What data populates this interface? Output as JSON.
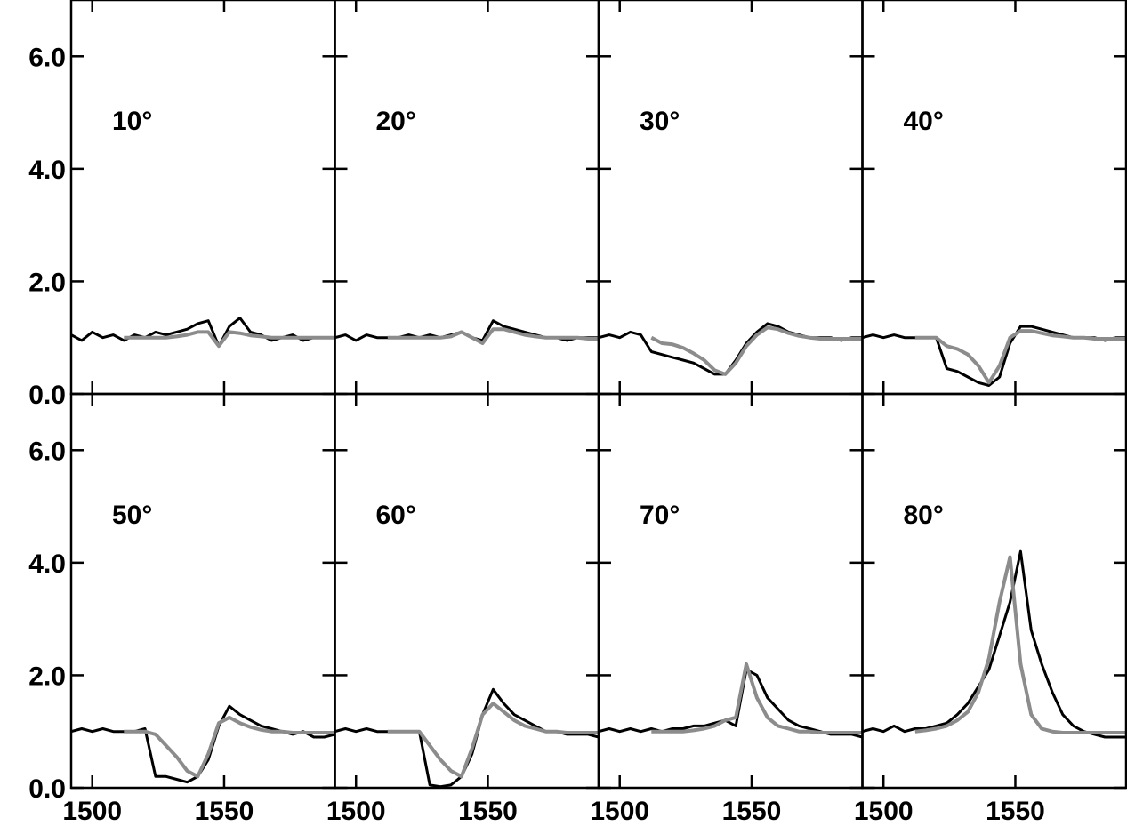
{
  "chart_data": [
    {
      "type": "line",
      "label": "10°",
      "xlim": [
        1492,
        1592
      ],
      "ylim": [
        0,
        7
      ],
      "xticks": [
        1500,
        1550
      ],
      "yticks": [
        {
          "value": 0,
          "label": "0.0"
        },
        {
          "value": 2,
          "label": "2.0"
        },
        {
          "value": 4,
          "label": "4.0"
        },
        {
          "value": 6,
          "label": "6.0"
        }
      ],
      "x": [
        1492,
        1496,
        1500,
        1504,
        1508,
        1512,
        1516,
        1520,
        1524,
        1528,
        1532,
        1536,
        1540,
        1544,
        1548,
        1552,
        1556,
        1560,
        1564,
        1568,
        1572,
        1576,
        1580,
        1584,
        1588,
        1592
      ],
      "series": [
        {
          "color": "#000000",
          "values": [
            1.05,
            0.95,
            1.1,
            1.0,
            1.05,
            0.95,
            1.05,
            1.0,
            1.1,
            1.05,
            1.1,
            1.15,
            1.25,
            1.3,
            0.85,
            1.2,
            1.35,
            1.1,
            1.05,
            0.95,
            1.0,
            1.05,
            0.95,
            1.0,
            1.0,
            1.0
          ]
        },
        {
          "color": "#8c8c8c",
          "values": [
            null,
            null,
            null,
            null,
            null,
            1.0,
            1.0,
            1.0,
            1.0,
            1.0,
            1.02,
            1.05,
            1.1,
            1.1,
            0.85,
            1.1,
            1.08,
            1.04,
            1.02,
            1.0,
            1.0,
            1.0,
            1.0,
            1.0,
            1.0,
            1.0
          ]
        }
      ]
    },
    {
      "type": "line",
      "label": "20°",
      "xlim": [
        1492,
        1592
      ],
      "ylim": [
        0,
        7
      ],
      "xticks": [
        1500,
        1550
      ],
      "yticks": [
        0,
        2,
        4,
        6
      ],
      "x": [
        1492,
        1496,
        1500,
        1504,
        1508,
        1512,
        1516,
        1520,
        1524,
        1528,
        1532,
        1536,
        1540,
        1544,
        1548,
        1552,
        1556,
        1560,
        1564,
        1568,
        1572,
        1576,
        1580,
        1584,
        1588,
        1592
      ],
      "series": [
        {
          "color": "#000000",
          "values": [
            1.0,
            1.05,
            0.95,
            1.05,
            1.0,
            1.0,
            1.0,
            1.05,
            1.0,
            1.05,
            1.0,
            1.05,
            1.1,
            1.0,
            0.95,
            1.3,
            1.2,
            1.15,
            1.1,
            1.05,
            1.0,
            1.0,
            0.95,
            1.0,
            1.0,
            1.0
          ]
        },
        {
          "color": "#8c8c8c",
          "values": [
            null,
            null,
            null,
            null,
            null,
            1.0,
            1.0,
            1.0,
            1.0,
            1.0,
            1.0,
            1.02,
            1.1,
            1.0,
            0.9,
            1.15,
            1.15,
            1.1,
            1.05,
            1.02,
            1.0,
            1.0,
            1.0,
            1.0,
            0.98,
            0.98
          ]
        }
      ]
    },
    {
      "type": "line",
      "label": "30°",
      "xlim": [
        1492,
        1592
      ],
      "ylim": [
        0,
        7
      ],
      "xticks": [
        1500,
        1550
      ],
      "yticks": [
        0,
        2,
        4,
        6
      ],
      "x": [
        1492,
        1496,
        1500,
        1504,
        1508,
        1512,
        1516,
        1520,
        1524,
        1528,
        1532,
        1536,
        1540,
        1544,
        1548,
        1552,
        1556,
        1560,
        1564,
        1568,
        1572,
        1576,
        1580,
        1584,
        1588,
        1592
      ],
      "series": [
        {
          "color": "#000000",
          "values": [
            1.0,
            1.05,
            1.0,
            1.1,
            1.05,
            0.75,
            0.7,
            0.65,
            0.6,
            0.55,
            0.45,
            0.35,
            0.35,
            0.6,
            0.9,
            1.1,
            1.25,
            1.2,
            1.1,
            1.05,
            1.0,
            1.0,
            1.0,
            0.95,
            1.0,
            1.0
          ]
        },
        {
          "color": "#8c8c8c",
          "values": [
            null,
            null,
            null,
            null,
            null,
            1.0,
            0.9,
            0.88,
            0.82,
            0.72,
            0.6,
            0.42,
            0.35,
            0.55,
            0.85,
            1.05,
            1.18,
            1.15,
            1.08,
            1.03,
            1.0,
            0.98,
            0.98,
            0.98,
            0.98,
            0.98
          ]
        }
      ]
    },
    {
      "type": "line",
      "label": "40°",
      "xlim": [
        1492,
        1592
      ],
      "ylim": [
        0,
        7
      ],
      "xticks": [
        1500,
        1550
      ],
      "yticks": [
        0,
        2,
        4,
        6
      ],
      "x": [
        1492,
        1496,
        1500,
        1504,
        1508,
        1512,
        1516,
        1520,
        1524,
        1528,
        1532,
        1536,
        1540,
        1544,
        1548,
        1552,
        1556,
        1560,
        1564,
        1568,
        1572,
        1576,
        1580,
        1584,
        1588,
        1592
      ],
      "series": [
        {
          "color": "#000000",
          "values": [
            1.0,
            1.05,
            1.0,
            1.05,
            1.0,
            1.0,
            1.0,
            1.0,
            0.45,
            0.4,
            0.3,
            0.2,
            0.15,
            0.3,
            0.9,
            1.2,
            1.2,
            1.15,
            1.1,
            1.05,
            1.0,
            1.0,
            1.0,
            0.95,
            1.0,
            1.0
          ]
        },
        {
          "color": "#8c8c8c",
          "values": [
            null,
            null,
            null,
            null,
            null,
            1.0,
            1.0,
            1.0,
            0.85,
            0.8,
            0.7,
            0.5,
            0.2,
            0.5,
            1.0,
            1.12,
            1.12,
            1.08,
            1.04,
            1.02,
            1.0,
            1.0,
            0.98,
            0.98,
            0.98,
            0.98
          ]
        }
      ]
    },
    {
      "type": "line",
      "label": "50°",
      "xlim": [
        1492,
        1592
      ],
      "ylim": [
        0,
        7
      ],
      "xticks": [
        1500,
        1550
      ],
      "yticks": [
        {
          "value": 0,
          "label": "0.0"
        },
        {
          "value": 2,
          "label": "2.0"
        },
        {
          "value": 4,
          "label": "4.0"
        },
        {
          "value": 6,
          "label": "6.0"
        }
      ],
      "x": [
        1492,
        1496,
        1500,
        1504,
        1508,
        1512,
        1516,
        1520,
        1524,
        1528,
        1532,
        1536,
        1540,
        1544,
        1548,
        1552,
        1556,
        1560,
        1564,
        1568,
        1572,
        1576,
        1580,
        1584,
        1588,
        1592
      ],
      "series": [
        {
          "color": "#000000",
          "values": [
            1.0,
            1.05,
            1.0,
            1.05,
            1.0,
            1.0,
            1.0,
            1.05,
            0.2,
            0.2,
            0.15,
            0.1,
            0.2,
            0.5,
            1.1,
            1.45,
            1.3,
            1.2,
            1.1,
            1.05,
            1.0,
            0.95,
            1.0,
            0.9,
            0.9,
            0.95
          ]
        },
        {
          "color": "#8c8c8c",
          "values": [
            null,
            null,
            null,
            null,
            null,
            1.0,
            1.0,
            1.0,
            0.95,
            0.75,
            0.55,
            0.3,
            0.2,
            0.6,
            1.15,
            1.25,
            1.15,
            1.08,
            1.03,
            1.0,
            1.0,
            0.98,
            0.98,
            0.98,
            0.98,
            0.98
          ]
        }
      ]
    },
    {
      "type": "line",
      "label": "60°",
      "xlim": [
        1492,
        1592
      ],
      "ylim": [
        0,
        7
      ],
      "xticks": [
        1500,
        1550
      ],
      "yticks": [
        0,
        2,
        4,
        6
      ],
      "x": [
        1492,
        1496,
        1500,
        1504,
        1508,
        1512,
        1516,
        1520,
        1524,
        1528,
        1532,
        1536,
        1540,
        1544,
        1548,
        1552,
        1556,
        1560,
        1564,
        1568,
        1572,
        1576,
        1580,
        1584,
        1588,
        1592
      ],
      "series": [
        {
          "color": "#000000",
          "values": [
            1.0,
            1.05,
            1.0,
            1.05,
            1.0,
            1.0,
            1.0,
            1.0,
            1.0,
            0.05,
            0.02,
            0.05,
            0.2,
            0.6,
            1.3,
            1.75,
            1.5,
            1.3,
            1.2,
            1.1,
            1.0,
            1.0,
            0.95,
            0.95,
            0.95,
            0.9
          ]
        },
        {
          "color": "#8c8c8c",
          "values": [
            null,
            null,
            null,
            null,
            null,
            1.0,
            1.0,
            1.0,
            1.0,
            0.75,
            0.5,
            0.3,
            0.2,
            0.7,
            1.3,
            1.5,
            1.35,
            1.2,
            1.1,
            1.05,
            1.0,
            1.0,
            0.98,
            0.98,
            0.98,
            0.98
          ]
        }
      ]
    },
    {
      "type": "line",
      "label": "70°",
      "xlim": [
        1492,
        1592
      ],
      "ylim": [
        0,
        7
      ],
      "xticks": [
        1500,
        1550
      ],
      "yticks": [
        0,
        2,
        4,
        6
      ],
      "x": [
        1492,
        1496,
        1500,
        1504,
        1508,
        1512,
        1516,
        1520,
        1524,
        1528,
        1532,
        1536,
        1540,
        1544,
        1548,
        1552,
        1556,
        1560,
        1564,
        1568,
        1572,
        1576,
        1580,
        1584,
        1588,
        1592
      ],
      "series": [
        {
          "color": "#000000",
          "values": [
            1.0,
            1.05,
            1.0,
            1.05,
            1.0,
            1.05,
            1.0,
            1.05,
            1.05,
            1.1,
            1.1,
            1.15,
            1.2,
            1.1,
            2.1,
            2.0,
            1.6,
            1.4,
            1.2,
            1.1,
            1.05,
            1.0,
            0.95,
            0.95,
            0.95,
            0.9
          ]
        },
        {
          "color": "#8c8c8c",
          "values": [
            null,
            null,
            null,
            null,
            null,
            1.0,
            1.0,
            1.0,
            1.0,
            1.02,
            1.05,
            1.1,
            1.2,
            1.25,
            2.2,
            1.6,
            1.25,
            1.1,
            1.05,
            1.0,
            1.0,
            0.98,
            0.98,
            0.98,
            0.98,
            0.98
          ]
        }
      ]
    },
    {
      "type": "line",
      "label": "80°",
      "xlim": [
        1492,
        1592
      ],
      "ylim": [
        0,
        7
      ],
      "xticks": [
        1500,
        1550
      ],
      "yticks": [
        0,
        2,
        4,
        6
      ],
      "x": [
        1492,
        1496,
        1500,
        1504,
        1508,
        1512,
        1516,
        1520,
        1524,
        1528,
        1532,
        1536,
        1540,
        1544,
        1548,
        1552,
        1556,
        1560,
        1564,
        1568,
        1572,
        1576,
        1580,
        1584,
        1588,
        1592
      ],
      "series": [
        {
          "color": "#000000",
          "values": [
            1.0,
            1.05,
            1.0,
            1.1,
            1.0,
            1.05,
            1.05,
            1.1,
            1.15,
            1.3,
            1.5,
            1.8,
            2.1,
            2.7,
            3.3,
            4.2,
            2.8,
            2.2,
            1.7,
            1.3,
            1.1,
            1.0,
            0.95,
            0.9,
            0.9,
            0.9
          ]
        },
        {
          "color": "#8c8c8c",
          "values": [
            null,
            null,
            null,
            null,
            null,
            1.0,
            1.02,
            1.05,
            1.1,
            1.2,
            1.35,
            1.7,
            2.3,
            3.3,
            4.1,
            2.2,
            1.3,
            1.05,
            1.0,
            0.98,
            0.98,
            0.98,
            0.98,
            0.98,
            0.98,
            0.98
          ]
        }
      ]
    }
  ]
}
